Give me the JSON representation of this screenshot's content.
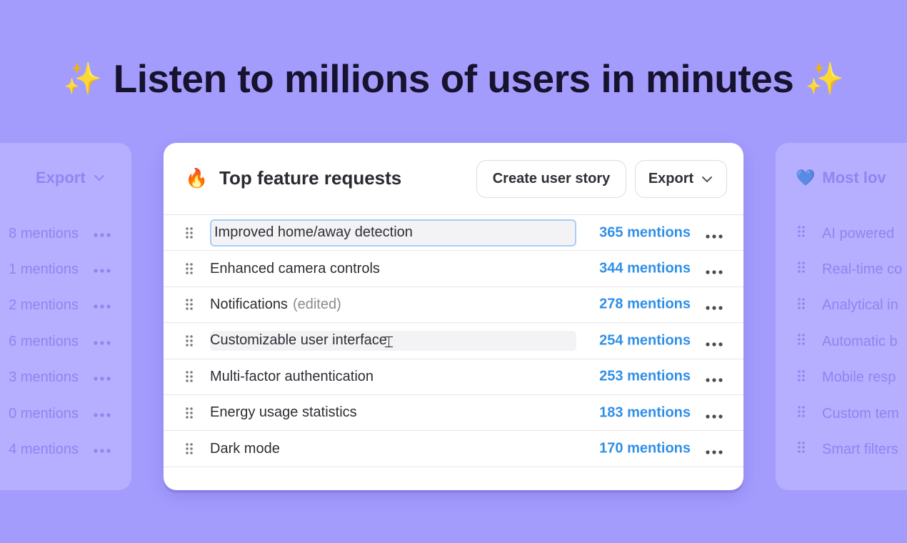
{
  "headline": {
    "sparkle_left": "✨",
    "text": "Listen to millions of users in minutes",
    "sparkle_right": "✨"
  },
  "left_panel": {
    "export_label": "Export",
    "rows": [
      {
        "mentions": "8 mentions"
      },
      {
        "mentions": "1 mentions"
      },
      {
        "mentions": "2 mentions"
      },
      {
        "mentions": "6 mentions"
      },
      {
        "mentions": "3 mentions"
      },
      {
        "mentions": "0 mentions"
      },
      {
        "mentions": "4 mentions"
      }
    ]
  },
  "right_panel": {
    "heart": "💙",
    "title": "Most lov",
    "rows": [
      {
        "label": "AI powered"
      },
      {
        "label": "Real-time co"
      },
      {
        "label": "Analytical in"
      },
      {
        "label": "Automatic b"
      },
      {
        "label": "Mobile resp"
      },
      {
        "label": "Custom tem"
      },
      {
        "label": "Smart filters"
      }
    ]
  },
  "card": {
    "icon": "🔥",
    "title": "Top feature requests",
    "create_story_label": "Create user story",
    "export_label": "Export",
    "rows": [
      {
        "label": "Improved home/away detection",
        "edited": "",
        "mentions": "365 mentions",
        "state": "focused"
      },
      {
        "label": "Enhanced camera controls",
        "edited": "",
        "mentions": "344 mentions",
        "state": ""
      },
      {
        "label": "Notifications",
        "edited": "(edited)",
        "mentions": "278 mentions",
        "state": ""
      },
      {
        "label": "Customizable user interface",
        "edited": "",
        "mentions": "254 mentions",
        "state": "hovered"
      },
      {
        "label": "Multi-factor authentication",
        "edited": "",
        "mentions": "253 mentions",
        "state": ""
      },
      {
        "label": "Energy usage statistics",
        "edited": "",
        "mentions": "183 mentions",
        "state": ""
      },
      {
        "label": "Dark mode",
        "edited": "",
        "mentions": "170 mentions",
        "state": ""
      }
    ]
  },
  "colors": {
    "background": "#a49cfd",
    "mentions": "#2f8fe6",
    "focus_ring": "#a9cdf6"
  }
}
